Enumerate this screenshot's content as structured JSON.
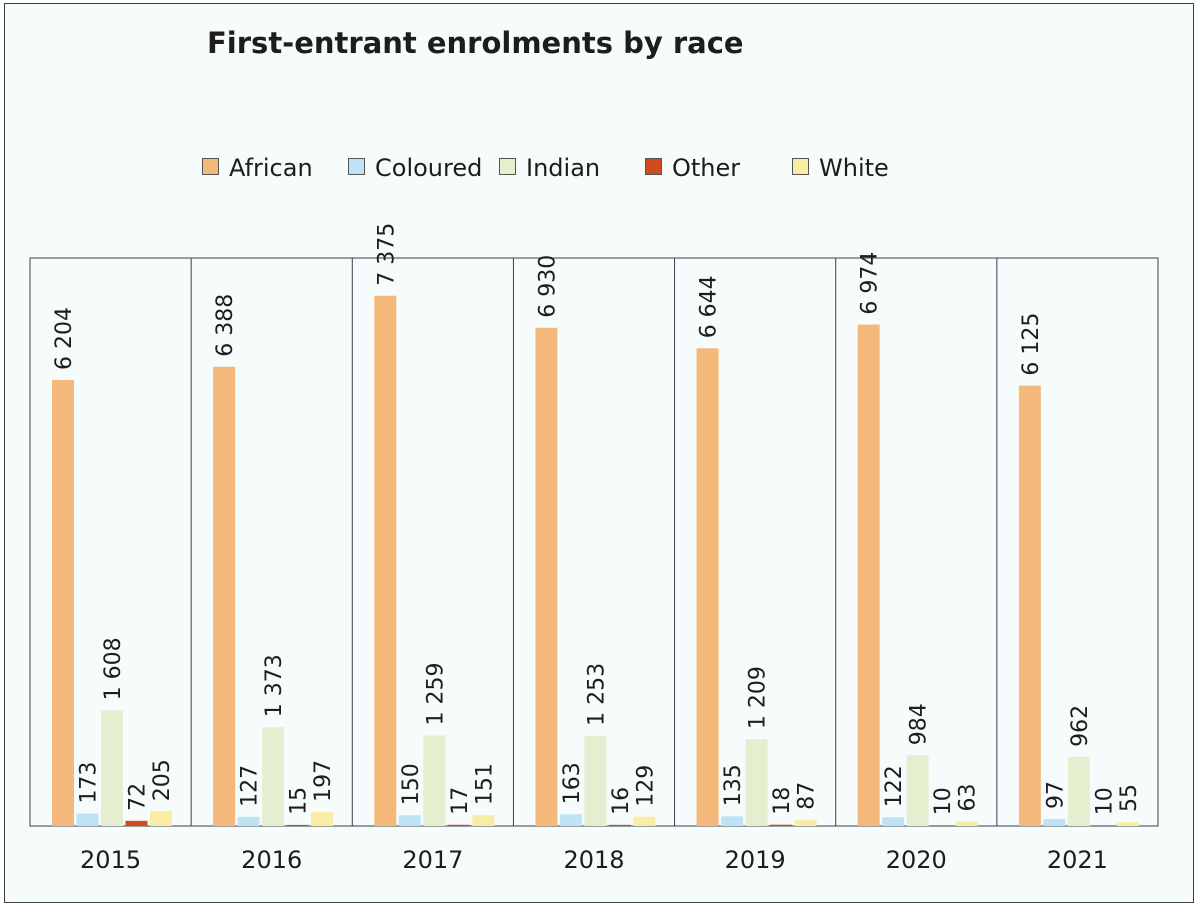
{
  "chart_data": {
    "type": "bar",
    "title": "First-entrant enrolments by race",
    "categories": [
      "2015",
      "2016",
      "2017",
      "2018",
      "2019",
      "2020",
      "2021"
    ],
    "series": [
      {
        "name": "African",
        "color": "#f4b97a",
        "values": [
          6204,
          6388,
          7375,
          6930,
          6644,
          6974,
          6125
        ],
        "labels": [
          "6 204",
          "6 388",
          "7 375",
          "6 930",
          "6 644",
          "6 974",
          "6 125"
        ]
      },
      {
        "name": "Coloured",
        "color": "#bfe3f5",
        "values": [
          173,
          127,
          150,
          163,
          135,
          122,
          97
        ],
        "labels": [
          "173",
          "127",
          "150",
          "163",
          "135",
          "122",
          "97"
        ]
      },
      {
        "name": "Indian",
        "color": "#e3efcf",
        "values": [
          1608,
          1373,
          1259,
          1253,
          1209,
          984,
          962
        ],
        "labels": [
          "1 608",
          "1 373",
          "1 259",
          "1 253",
          "1 209",
          "984",
          "962"
        ]
      },
      {
        "name": "Other",
        "color": "#d24b1e",
        "values": [
          72,
          15,
          17,
          16,
          18,
          10,
          10
        ],
        "labels": [
          "72",
          "15",
          "17",
          "16",
          "18",
          "10",
          "10"
        ]
      },
      {
        "name": "White",
        "color": "#faeba5",
        "values": [
          205,
          197,
          151,
          129,
          87,
          63,
          55
        ],
        "labels": [
          "205",
          "197",
          "151",
          "129",
          "87",
          "63",
          "55"
        ]
      }
    ],
    "ylim": [
      0,
      7900
    ],
    "grid": false,
    "legend_position": "top"
  }
}
